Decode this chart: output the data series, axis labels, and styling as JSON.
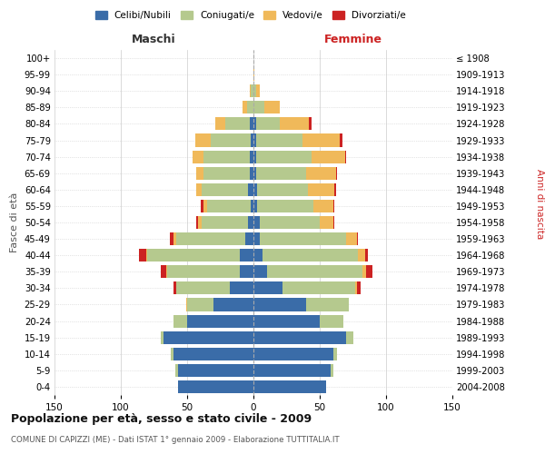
{
  "age_groups": [
    "0-4",
    "5-9",
    "10-14",
    "15-19",
    "20-24",
    "25-29",
    "30-34",
    "35-39",
    "40-44",
    "45-49",
    "50-54",
    "55-59",
    "60-64",
    "65-69",
    "70-74",
    "75-79",
    "80-84",
    "85-89",
    "90-94",
    "95-99",
    "100+"
  ],
  "birth_years": [
    "2004-2008",
    "1999-2003",
    "1994-1998",
    "1989-1993",
    "1984-1988",
    "1979-1983",
    "1974-1978",
    "1969-1973",
    "1964-1968",
    "1959-1963",
    "1954-1958",
    "1949-1953",
    "1944-1948",
    "1939-1943",
    "1934-1938",
    "1929-1933",
    "1924-1928",
    "1919-1923",
    "1914-1918",
    "1909-1913",
    "≤ 1908"
  ],
  "male": {
    "celibe": [
      57,
      57,
      60,
      68,
      50,
      30,
      18,
      10,
      10,
      6,
      4,
      2,
      4,
      3,
      3,
      2,
      3,
      0,
      0,
      0,
      0
    ],
    "coniugato": [
      0,
      2,
      2,
      2,
      10,
      20,
      40,
      55,
      70,
      52,
      35,
      33,
      35,
      35,
      35,
      30,
      18,
      5,
      2,
      0,
      0
    ],
    "vedovo": [
      0,
      0,
      0,
      0,
      0,
      1,
      0,
      1,
      1,
      2,
      3,
      3,
      4,
      5,
      8,
      12,
      8,
      3,
      1,
      0,
      0
    ],
    "divorziato": [
      0,
      0,
      0,
      0,
      0,
      0,
      2,
      4,
      5,
      3,
      1,
      2,
      0,
      0,
      0,
      0,
      0,
      0,
      0,
      0,
      0
    ]
  },
  "female": {
    "nubile": [
      55,
      58,
      60,
      70,
      50,
      40,
      22,
      10,
      7,
      5,
      5,
      3,
      3,
      2,
      2,
      2,
      2,
      0,
      0,
      0,
      0
    ],
    "coniugata": [
      0,
      2,
      3,
      5,
      18,
      32,
      55,
      72,
      72,
      65,
      45,
      42,
      38,
      38,
      42,
      35,
      18,
      8,
      2,
      0,
      0
    ],
    "vedova": [
      0,
      0,
      0,
      0,
      0,
      0,
      1,
      3,
      5,
      8,
      10,
      15,
      20,
      22,
      25,
      28,
      22,
      12,
      3,
      1,
      0
    ],
    "divorziata": [
      0,
      0,
      0,
      0,
      0,
      0,
      3,
      5,
      2,
      1,
      1,
      1,
      1,
      1,
      1,
      2,
      2,
      0,
      0,
      0,
      0
    ]
  },
  "colors": {
    "celibe": "#3a6ca8",
    "coniugato": "#b5c98e",
    "vedovo": "#f0b95a",
    "divorziato": "#cc2222"
  },
  "legend_labels": [
    "Celibi/Nubili",
    "Coniugati/e",
    "Vedovi/e",
    "Divorziati/e"
  ],
  "title": "Popolazione per età, sesso e stato civile - 2009",
  "subtitle": "COMUNE DI CAPIZZI (ME) - Dati ISTAT 1° gennaio 2009 - Elaborazione TUTTITALIA.IT",
  "xlabel_left": "Maschi",
  "xlabel_right": "Femmine",
  "ylabel_left": "Fasce di età",
  "ylabel_right": "Anni di nascita",
  "xlim": 150,
  "bg_color": "#ffffff",
  "grid_color": "#cccccc"
}
